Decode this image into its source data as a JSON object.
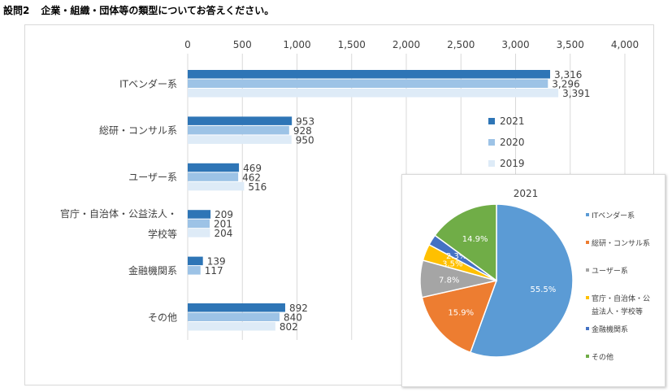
{
  "page": {
    "title_num": "設問2",
    "title_text": "企業・組織・団体等の類型についてお答えください。"
  },
  "chart_data": [
    {
      "type": "bar",
      "orientation": "horizontal",
      "categories": [
        [
          "ITベンダー系"
        ],
        [
          "総研・コンサル系"
        ],
        [
          "ユーザー系"
        ],
        [
          "官庁・自治体・公益法人・",
          "学校等"
        ],
        [
          "金融機関系"
        ],
        [
          "その他"
        ]
      ],
      "series": [
        {
          "name": "2021",
          "color": "#2e75b6",
          "values": [
            3316,
            953,
            469,
            209,
            139,
            892
          ]
        },
        {
          "name": "2020",
          "color": "#9dc3e6",
          "values": [
            3296,
            928,
            462,
            201,
            117,
            840
          ]
        },
        {
          "name": "2019",
          "color": "#deebf7",
          "values": [
            3391,
            950,
            516,
            204,
            null,
            802
          ]
        }
      ],
      "xlim": [
        0,
        4000
      ],
      "ticks": [
        0,
        500,
        1000,
        1500,
        2000,
        2500,
        3000,
        3500,
        4000
      ],
      "tick_labels": [
        "0",
        "500",
        "1,000",
        "1,500",
        "2,000",
        "2,500",
        "3,000",
        "3,500",
        "4,000"
      ],
      "value_labels": [
        [
          "3,316",
          "953",
          "469",
          "209",
          "139",
          "892"
        ],
        [
          "3,296",
          "928",
          "462",
          "201",
          "117",
          "840"
        ],
        [
          "3,391",
          "950",
          "516",
          "204",
          "",
          "802"
        ]
      ],
      "grid": true,
      "legend": "right"
    },
    {
      "type": "pie",
      "title": "2021",
      "slices": [
        {
          "name": "ITベンダー系",
          "value": 55.5,
          "label": "55.5%",
          "color": "#5b9bd5"
        },
        {
          "name": "総研・コンサル系",
          "value": 15.9,
          "label": "15.9%",
          "color": "#ed7d31"
        },
        {
          "name": "ユーザー系",
          "value": 7.8,
          "label": "7.8%",
          "color": "#a5a5a5"
        },
        {
          "name": "官庁・自治体・公益法人・学校等",
          "value": 3.5,
          "label": "3.5%",
          "color": "#ffc000"
        },
        {
          "name": "金融機関系",
          "value": 2.3,
          "label": "2.3%",
          "color": "#4472c4"
        },
        {
          "name": "その他",
          "value": 14.9,
          "label": "14.9%",
          "color": "#70ad47"
        }
      ],
      "legend_lines": [
        [
          "ITベンダー系"
        ],
        [
          "総研・コンサル系"
        ],
        [
          "ユーザー系"
        ],
        [
          "官庁・自治体・公",
          "益法人・学校等"
        ],
        [
          "金融機関系"
        ],
        [
          "その他"
        ]
      ],
      "legend": "right"
    }
  ]
}
